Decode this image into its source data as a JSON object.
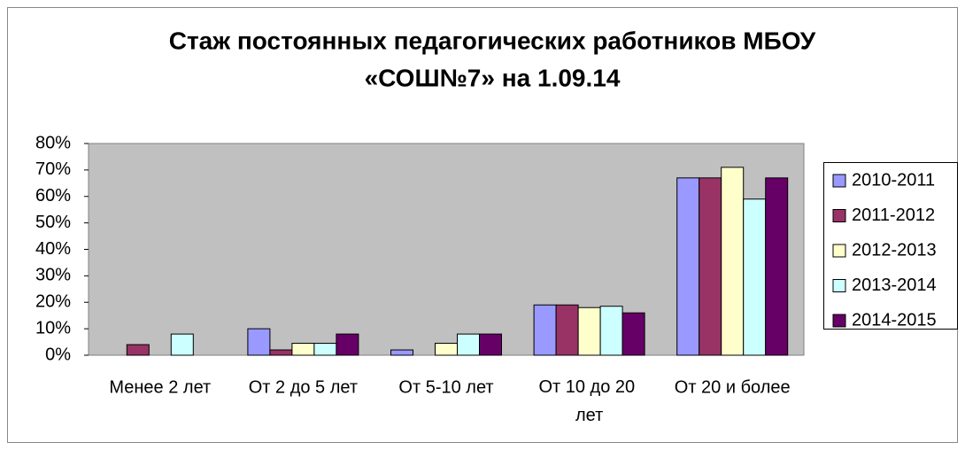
{
  "chart_data": {
    "type": "bar",
    "title": [
      "Стаж постоянных педагогических работников МБОУ",
      "«СОШ№7» на 1.09.14"
    ],
    "categories": [
      "Менее 2 лет",
      "От 2 до 5 лет",
      "От 5-10 лет",
      "От 10 до 20 лет",
      "От 20 и более"
    ],
    "series": [
      {
        "name": "2010-2011",
        "color": "#9999ff",
        "values": [
          0,
          10,
          2,
          19,
          67
        ]
      },
      {
        "name": "2011-2012",
        "color": "#993366",
        "values": [
          4,
          2,
          0,
          19,
          67
        ]
      },
      {
        "name": "2012-2013",
        "color": "#ffffcc",
        "values": [
          0,
          4.5,
          4.5,
          18,
          71
        ]
      },
      {
        "name": "2013-2014",
        "color": "#ccffff",
        "values": [
          8,
          4.5,
          8,
          18.5,
          59
        ]
      },
      {
        "name": "2014-2015",
        "color": "#660066",
        "values": [
          0,
          8,
          8,
          16,
          67
        ]
      }
    ],
    "ylim": [
      0,
      80
    ],
    "yticks": [
      {
        "value": 0,
        "label": "0%"
      },
      {
        "value": 10,
        "label": "10%"
      },
      {
        "value": 20,
        "label": "20%"
      },
      {
        "value": 30,
        "label": "30%"
      },
      {
        "value": 40,
        "label": "40%"
      },
      {
        "value": 50,
        "label": "50%"
      },
      {
        "value": 60,
        "label": "60%"
      },
      {
        "value": 70,
        "label": "70%"
      },
      {
        "value": 80,
        "label": "80%"
      }
    ],
    "legend": "right"
  }
}
